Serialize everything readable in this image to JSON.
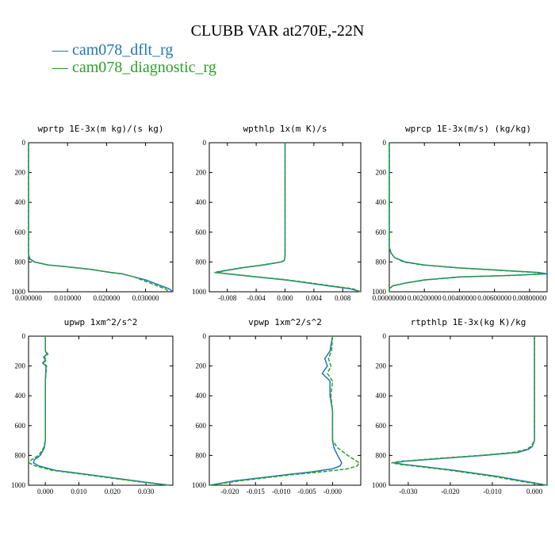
{
  "title": "CLUBB VAR at270E,-22N",
  "legend": [
    {
      "name": "cam078_dflt_rg",
      "color": "#1f77b4",
      "style": "solid"
    },
    {
      "name": "cam078_diagnostic_rg",
      "color": "#2ca02c",
      "style": "solid"
    }
  ],
  "chart_data": [
    {
      "type": "line",
      "title": "wprtp  1E-3x(m kg)/(s kg)",
      "xlim": [
        0.0,
        0.037
      ],
      "ylim": [
        1000,
        0
      ],
      "y_inverted": true,
      "x_ticks": [
        0.0,
        0.01,
        0.02,
        0.03
      ],
      "x_tick_labels": [
        "0.000000",
        "0.010000",
        "0.020000",
        "0.030000"
      ],
      "y_ticks": [
        0,
        200,
        400,
        600,
        800,
        1000
      ],
      "y_tick_labels": [
        "0",
        "200",
        "400",
        "600",
        "800",
        "1000"
      ],
      "series": [
        {
          "name": "cam078_dflt_rg",
          "y": [
            0,
            100,
            200,
            300,
            400,
            500,
            600,
            700,
            750,
            780,
            800,
            820,
            830,
            850,
            870,
            880,
            900,
            920,
            940,
            960,
            980,
            1000
          ],
          "x": [
            0,
            0,
            0,
            0,
            0,
            0,
            0,
            0,
            0,
            0.0003,
            0.0015,
            0.005,
            0.009,
            0.016,
            0.021,
            0.024,
            0.027,
            0.03,
            0.032,
            0.034,
            0.036,
            0.037
          ]
        },
        {
          "name": "cam078_diagnostic_rg",
          "y": [
            0,
            100,
            200,
            300,
            400,
            500,
            600,
            700,
            750,
            780,
            800,
            820,
            830,
            850,
            870,
            880,
            900,
            920,
            940,
            960,
            980,
            1000
          ],
          "x": [
            0,
            0,
            0,
            0,
            0,
            0,
            0,
            0,
            0,
            0.0004,
            0.0016,
            0.005,
            0.009,
            0.016,
            0.021,
            0.024,
            0.027,
            0.029,
            0.031,
            0.033,
            0.035,
            0.036
          ]
        }
      ]
    },
    {
      "type": "line",
      "title": "wpthlp  1x(m K)/s",
      "xlim": [
        -0.0105,
        0.0105
      ],
      "ylim": [
        1000,
        0
      ],
      "y_inverted": true,
      "x_ticks": [
        -0.008,
        -0.004,
        0.0,
        0.004,
        0.008
      ],
      "x_tick_labels": [
        "-0.008",
        "-0.004",
        "0.000",
        "0.004",
        "0.008"
      ],
      "y_ticks": [
        0,
        200,
        400,
        600,
        800,
        1000
      ],
      "y_tick_labels": [
        "0",
        "200",
        "400",
        "600",
        "800",
        "1000"
      ],
      "series": [
        {
          "name": "cam078_dflt_rg",
          "y": [
            0,
            100,
            200,
            300,
            400,
            500,
            600,
            700,
            760,
            790,
            800,
            820,
            840,
            860,
            870,
            880,
            900,
            920,
            940,
            960,
            980,
            1000
          ],
          "x": [
            0,
            0,
            0,
            0,
            0,
            0,
            0,
            0,
            0,
            -0.0001,
            -0.0005,
            -0.003,
            -0.006,
            -0.0085,
            -0.0095,
            -0.008,
            -0.004,
            0,
            0.003,
            0.006,
            0.009,
            0.0105
          ]
        },
        {
          "name": "cam078_diagnostic_rg",
          "y": [
            0,
            100,
            200,
            300,
            400,
            500,
            600,
            700,
            760,
            790,
            800,
            820,
            840,
            860,
            870,
            880,
            900,
            920,
            940,
            960,
            980,
            1000
          ],
          "x": [
            0,
            0,
            0,
            0,
            0,
            0,
            0,
            0,
            0,
            -0.0001,
            -0.0006,
            -0.0032,
            -0.0062,
            -0.0088,
            -0.0098,
            -0.0078,
            -0.0038,
            0.0003,
            0.0034,
            0.0064,
            0.0094,
            0.0105
          ]
        }
      ]
    },
    {
      "type": "line",
      "title": "wprcp  1E-3x(m/s) (kg/kg)",
      "xlim": [
        0.0,
        0.009
      ],
      "ylim": [
        1000,
        0
      ],
      "y_inverted": true,
      "x_ticks": [
        0.0,
        0.002,
        0.004,
        0.006,
        0.008
      ],
      "x_tick_labels": [
        "0.00000000",
        "0.00200000",
        "0.00400000",
        "0.00600000",
        "0.00800000"
      ],
      "y_ticks": [
        0,
        200,
        400,
        600,
        800,
        1000
      ],
      "y_tick_labels": [
        "0",
        "200",
        "400",
        "600",
        "800",
        "1000"
      ],
      "series": [
        {
          "name": "cam078_dflt_rg",
          "y": [
            0,
            200,
            400,
            600,
            700,
            740,
            770,
            800,
            820,
            840,
            860,
            870,
            880,
            890,
            900,
            920,
            940,
            960,
            980,
            1000
          ],
          "x": [
            0,
            0,
            0,
            0,
            0,
            0.0001,
            0.0003,
            0.0009,
            0.002,
            0.004,
            0.007,
            0.0085,
            0.009,
            0.007,
            0.004,
            0.002,
            0.001,
            0.0002,
            0,
            0
          ]
        },
        {
          "name": "cam078_diagnostic_rg",
          "y": [
            0,
            200,
            400,
            600,
            700,
            740,
            770,
            800,
            820,
            840,
            860,
            870,
            880,
            890,
            900,
            920,
            940,
            960,
            980,
            1000
          ],
          "x": [
            0,
            0,
            0,
            0,
            0,
            0.0001,
            0.0003,
            0.0008,
            0.0019,
            0.0039,
            0.0068,
            0.0083,
            0.0088,
            0.0072,
            0.0042,
            0.0021,
            0.001,
            0.0002,
            0,
            0
          ]
        }
      ]
    },
    {
      "type": "line",
      "title": "upwp  1xm^2/s^2",
      "xlim": [
        -0.005,
        0.038
      ],
      "ylim": [
        1000,
        0
      ],
      "y_inverted": true,
      "x_ticks": [
        0.0,
        0.01,
        0.02,
        0.03
      ],
      "x_tick_labels": [
        "0.000",
        "0.010",
        "0.020",
        "0.030"
      ],
      "y_ticks": [
        0,
        200,
        400,
        600,
        800,
        1000
      ],
      "y_tick_labels": [
        "0",
        "200",
        "400",
        "600",
        "800",
        "1000"
      ],
      "series": [
        {
          "name": "cam078_dflt_rg",
          "y": [
            0,
            100,
            120,
            140,
            160,
            180,
            200,
            300,
            400,
            500,
            600,
            700,
            750,
            800,
            830,
            850,
            870,
            900,
            920,
            950,
            980,
            1000
          ],
          "x": [
            0,
            0,
            0.0005,
            -0.0005,
            0,
            -0.0008,
            0.0002,
            0,
            0,
            0,
            0,
            0,
            -0.0003,
            -0.0015,
            -0.0033,
            -0.0035,
            -0.002,
            0.003,
            0.01,
            0.02,
            0.03,
            0.037
          ]
        },
        {
          "name": "cam078_diagnostic_rg",
          "y": [
            0,
            100,
            120,
            140,
            160,
            180,
            200,
            300,
            400,
            500,
            600,
            700,
            750,
            800,
            830,
            850,
            870,
            900,
            920,
            950,
            980,
            1000
          ],
          "x": [
            0,
            0,
            0.0008,
            -0.0003,
            0.0003,
            -0.0006,
            0.0004,
            0,
            0,
            0,
            0,
            0,
            -0.0005,
            -0.002,
            -0.0042,
            -0.0048,
            -0.003,
            0.002,
            0.009,
            0.019,
            0.029,
            0.037
          ]
        }
      ]
    },
    {
      "type": "line",
      "title": "vpwp  1xm^2/s^2",
      "xlim": [
        -0.024,
        0.0055
      ],
      "ylim": [
        1000,
        0
      ],
      "y_inverted": true,
      "x_ticks": [
        -0.02,
        -0.015,
        -0.01,
        -0.005,
        0.0
      ],
      "x_tick_labels": [
        "-0.020",
        "-0.015",
        "-0.010",
        "-0.005",
        "-0.000"
      ],
      "y_ticks": [
        0,
        200,
        400,
        600,
        800,
        1000
      ],
      "y_tick_labels": [
        "0",
        "200",
        "400",
        "600",
        "800",
        "1000"
      ],
      "series": [
        {
          "name": "cam078_dflt_rg",
          "y": [
            0,
            100,
            150,
            200,
            250,
            300,
            400,
            500,
            600,
            700,
            750,
            800,
            850,
            870,
            890,
            910,
            930,
            950,
            970,
            1000
          ],
          "x": [
            0,
            -0.0005,
            -0.0015,
            -0.001,
            -0.002,
            -0.0005,
            -0.0005,
            0,
            0,
            0,
            0.0003,
            0.001,
            0.0018,
            0.0015,
            0,
            -0.004,
            -0.009,
            -0.014,
            -0.019,
            -0.024
          ]
        },
        {
          "name": "cam078_diagnostic_rg",
          "y": [
            0,
            100,
            150,
            200,
            250,
            300,
            400,
            500,
            600,
            700,
            750,
            800,
            850,
            870,
            890,
            910,
            930,
            950,
            970,
            1000
          ],
          "x": [
            0,
            -0.0002,
            -0.0008,
            -0.0003,
            -0.001,
            0,
            -0.0003,
            0,
            0,
            0,
            0.001,
            0.003,
            0.0052,
            0.0048,
            0.003,
            -0.002,
            -0.008,
            -0.013,
            -0.018,
            -0.024
          ]
        }
      ]
    },
    {
      "type": "line",
      "title": "rtpthlp  1E-3x(kg K)/kg",
      "xlim": [
        -0.0345,
        0.003
      ],
      "ylim": [
        1000,
        0
      ],
      "y_inverted": true,
      "x_ticks": [
        -0.03,
        -0.02,
        -0.01,
        0.0
      ],
      "x_tick_labels": [
        "-0.030",
        "-0.020",
        "-0.010",
        "0.000"
      ],
      "y_ticks": [
        0,
        200,
        400,
        600,
        800,
        1000
      ],
      "y_tick_labels": [
        "0",
        "200",
        "400",
        "600",
        "800",
        "1000"
      ],
      "series": [
        {
          "name": "cam078_dflt_rg",
          "y": [
            0,
            200,
            400,
            600,
            700,
            740,
            760,
            780,
            800,
            820,
            840,
            850,
            860,
            880,
            900,
            920,
            940,
            960,
            980,
            1000
          ],
          "x": [
            0,
            0,
            0,
            0,
            0,
            -0.0005,
            -0.0015,
            -0.004,
            -0.012,
            -0.022,
            -0.031,
            -0.0335,
            -0.031,
            -0.025,
            -0.019,
            -0.014,
            -0.009,
            -0.005,
            -0.001,
            0.003
          ]
        },
        {
          "name": "cam078_diagnostic_rg",
          "y": [
            0,
            200,
            400,
            600,
            700,
            740,
            760,
            780,
            800,
            820,
            840,
            850,
            860,
            880,
            900,
            920,
            940,
            960,
            980,
            1000
          ],
          "x": [
            0,
            0,
            0,
            0,
            0,
            -0.0008,
            -0.002,
            -0.005,
            -0.013,
            -0.023,
            -0.032,
            -0.034,
            -0.032,
            -0.026,
            -0.02,
            -0.015,
            -0.01,
            -0.006,
            -0.002,
            0.003
          ]
        }
      ]
    }
  ]
}
